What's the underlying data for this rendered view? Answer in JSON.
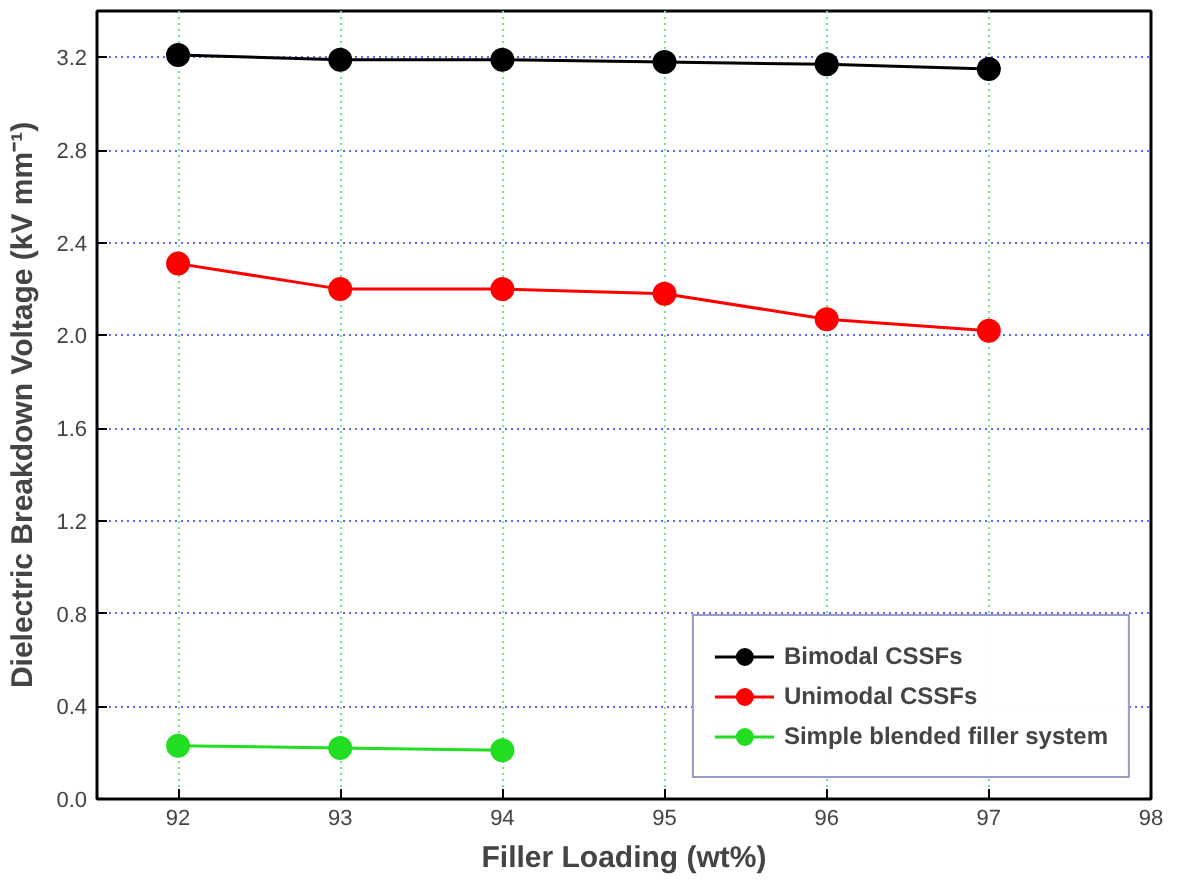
{
  "chart_data": {
    "type": "line",
    "xlabel": "Filler Loading (wt%)",
    "ylabel": "Dielectric Breakdown Voltage (kV mm⁻¹)",
    "x": [
      92,
      93,
      94,
      95,
      96,
      97
    ],
    "series": [
      {
        "name": "Bimodal CSSFs",
        "color": "#000000",
        "values": [
          3.21,
          3.19,
          3.19,
          3.18,
          3.17,
          3.15
        ]
      },
      {
        "name": "Unimodal CSSFs",
        "color": "#ff0000",
        "values": [
          2.31,
          2.2,
          2.2,
          2.18,
          2.07,
          2.02
        ]
      },
      {
        "name": "Simple blended filler system",
        "color": "#22dd22",
        "values": [
          0.23,
          0.22,
          0.21,
          null,
          null,
          null
        ]
      }
    ],
    "xlim": [
      91.5,
      98
    ],
    "ylim": [
      0,
      3.4
    ],
    "xticks": [
      92,
      93,
      94,
      95,
      96,
      97,
      98
    ],
    "yticks": [
      {
        "value": 0,
        "label": "0.0"
      },
      {
        "value": 0.4,
        "label": "0.4"
      },
      {
        "value": 0.8,
        "label": "0.8"
      },
      {
        "value": 1.2,
        "label": "1.2"
      },
      {
        "value": 1.6,
        "label": "1.6"
      },
      {
        "value": 2.0,
        "label": "2.0"
      },
      {
        "value": 2.4,
        "label": "2.4"
      },
      {
        "value": 2.8,
        "label": "2.8"
      },
      {
        "value": 3.2,
        "label": "3.2"
      }
    ],
    "grid": true,
    "legend": "bottom right",
    "marker": "circle",
    "line_style": "solid"
  }
}
